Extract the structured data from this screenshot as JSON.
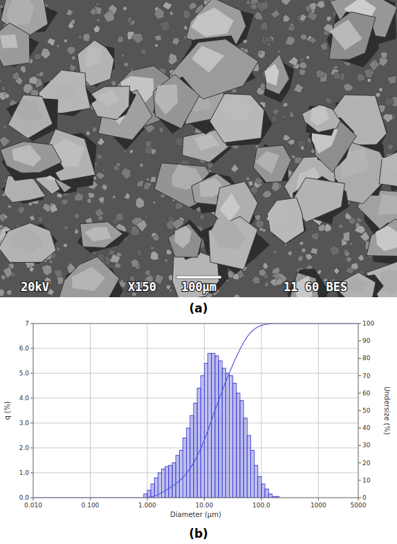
{
  "panel_labels": [
    "(a)",
    "(b)"
  ],
  "image": {
    "texts": {
      "voltage": "20kV",
      "magnification": "X150",
      "scale": "100µm",
      "info": "11 60 BES"
    }
  },
  "chart_data": {
    "type": "histogram",
    "x_label": "Diameter (µm)",
    "y_label": "q (%)",
    "y2_label": "Undersize (%)",
    "log": "x",
    "grid": true,
    "xlim": [
      0.01,
      5000
    ],
    "xticks": [
      {
        "value": 0.01,
        "label": "0.010"
      },
      {
        "value": 0.1,
        "label": "0.100"
      },
      {
        "value": 1,
        "label": "1.000"
      },
      {
        "value": 10,
        "label": "10.00"
      },
      {
        "value": 100,
        "label": "100.0"
      },
      1000,
      5000
    ],
    "ylim": [
      0,
      7
    ],
    "yticks": [
      {
        "value": 0,
        "label": "0.0"
      },
      {
        "value": 1,
        "label": "1.0"
      },
      {
        "value": 2,
        "label": "2.0"
      },
      {
        "value": 3,
        "label": "3.0"
      },
      {
        "value": 4,
        "label": "4.0"
      },
      {
        "value": 5,
        "label": "5.0"
      },
      {
        "value": 6,
        "label": "6.0"
      },
      7
    ],
    "y2lim": [
      0,
      100
    ],
    "y2ticks": [
      0,
      10,
      20,
      30,
      40,
      50,
      60,
      70,
      80,
      90,
      100
    ],
    "bins": [
      0.866,
      1,
      1.155,
      1.334,
      1.54,
      1.778,
      2.054,
      2.371,
      2.738,
      3.162,
      3.652,
      4.217,
      4.87,
      5.623,
      6.494,
      7.499,
      8.66,
      10,
      11.55,
      13.34,
      15.4,
      17.78,
      20.54,
      23.71,
      27.38,
      31.62,
      36.52,
      42.17,
      48.7,
      56.23,
      64.94,
      74.99,
      86.6,
      100,
      115.5,
      133.4,
      154,
      177.8,
      205.4
    ],
    "series": [
      {
        "type": "bar",
        "color": "#3333cc",
        "values": [
          0.15,
          0.3,
          0.55,
          0.8,
          1.0,
          1.15,
          1.25,
          1.3,
          1.4,
          1.7,
          1.9,
          2.4,
          2.8,
          3.3,
          3.8,
          4.4,
          4.9,
          5.4,
          5.8,
          5.8,
          5.7,
          5.5,
          5.2,
          5.0,
          4.9,
          4.6,
          4.2,
          3.9,
          3.2,
          2.5,
          1.9,
          1.3,
          0.85,
          0.55,
          0.35,
          0.15,
          0.05,
          0.05
        ]
      },
      {
        "type": "line",
        "axis": "y2",
        "color": "#5555dd",
        "line_style": "solid",
        "x": [
          0.01,
          0.866,
          1,
          1.155,
          1.334,
          1.54,
          1.778,
          2.054,
          2.371,
          2.738,
          3.162,
          3.652,
          4.217,
          4.87,
          5.623,
          6.494,
          7.499,
          8.66,
          10,
          11.55,
          13.34,
          15.4,
          17.78,
          20.54,
          23.71,
          27.38,
          31.62,
          36.52,
          42.17,
          48.7,
          56.23,
          64.94,
          74.99,
          86.6,
          100,
          115.5,
          133.4,
          154,
          177.8,
          205.4,
          5000
        ],
        "values": [
          0,
          0,
          0.15,
          0.45,
          1.0,
          1.8,
          2.8,
          3.95,
          5.2,
          6.5,
          7.9,
          9.6,
          11.5,
          13.9,
          16.7,
          20.0,
          23.8,
          28.2,
          33.1,
          38.5,
          44.3,
          50.1,
          55.8,
          61.3,
          66.5,
          71.5,
          76.4,
          81.0,
          85.2,
          89.1,
          92.3,
          94.8,
          96.7,
          98.0,
          98.85,
          99.4,
          99.75,
          99.9,
          99.95,
          100,
          100
        ]
      }
    ]
  }
}
